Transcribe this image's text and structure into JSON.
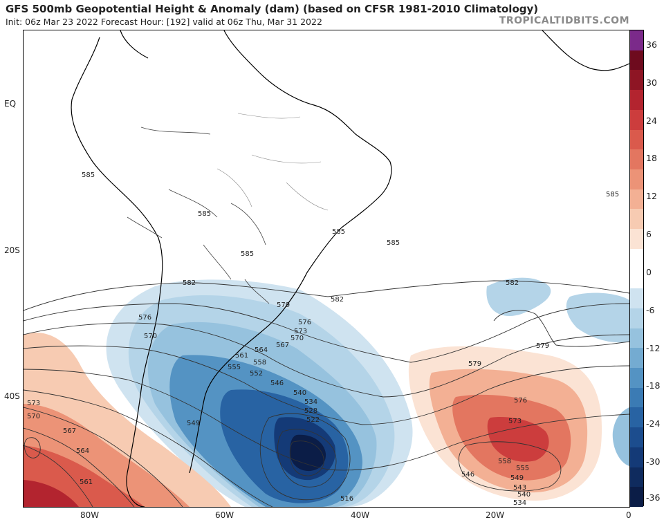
{
  "header": {
    "title": "GFS 500mb Geopotential Height & Anomaly (dam) (based on CFSR 1981-2010 Climatology)",
    "subtitle": "Init: 06z Mar 23 2022   Forecast Hour: [192]   valid at 06z Thu, Mar 31 2022",
    "brand": "TROPICALTIDBITS.COM"
  },
  "axes": {
    "lat_labels": [
      "EQ",
      "20S",
      "40S"
    ],
    "lon_labels": [
      "80W",
      "60W",
      "40W",
      "20W",
      "0"
    ]
  },
  "colorbar": {
    "ticks": [
      "36",
      "30",
      "24",
      "18",
      "12",
      "6",
      "0",
      "-6",
      "-12",
      "-18",
      "-24",
      "-30",
      "-36"
    ],
    "colors": [
      "#7b2a8a",
      "#6e0b1e",
      "#8e1524",
      "#b3242f",
      "#cc3d3d",
      "#da5a4c",
      "#e37660",
      "#ec9377",
      "#f3b094",
      "#f7cbb2",
      "#fbe3d4",
      "#ffffff",
      "#ffffff",
      "#cfe3f0",
      "#b4d4e8",
      "#96c2de",
      "#74abd1",
      "#5493c3",
      "#3b7bb4",
      "#2863a3",
      "#1c4d8e",
      "#143a77",
      "#0f2b5e",
      "#0b1d47"
    ]
  },
  "contour_labels": [
    "585",
    "585",
    "585",
    "585",
    "585",
    "585",
    "582",
    "582",
    "582",
    "579",
    "579",
    "579",
    "576",
    "576",
    "576",
    "573",
    "573",
    "573",
    "570",
    "570",
    "570",
    "567",
    "567",
    "564",
    "564",
    "561",
    "561",
    "558",
    "558",
    "555",
    "555",
    "552",
    "549",
    "549",
    "546",
    "546",
    "543",
    "540",
    "540",
    "534",
    "528",
    "522",
    "516",
    "534"
  ]
}
